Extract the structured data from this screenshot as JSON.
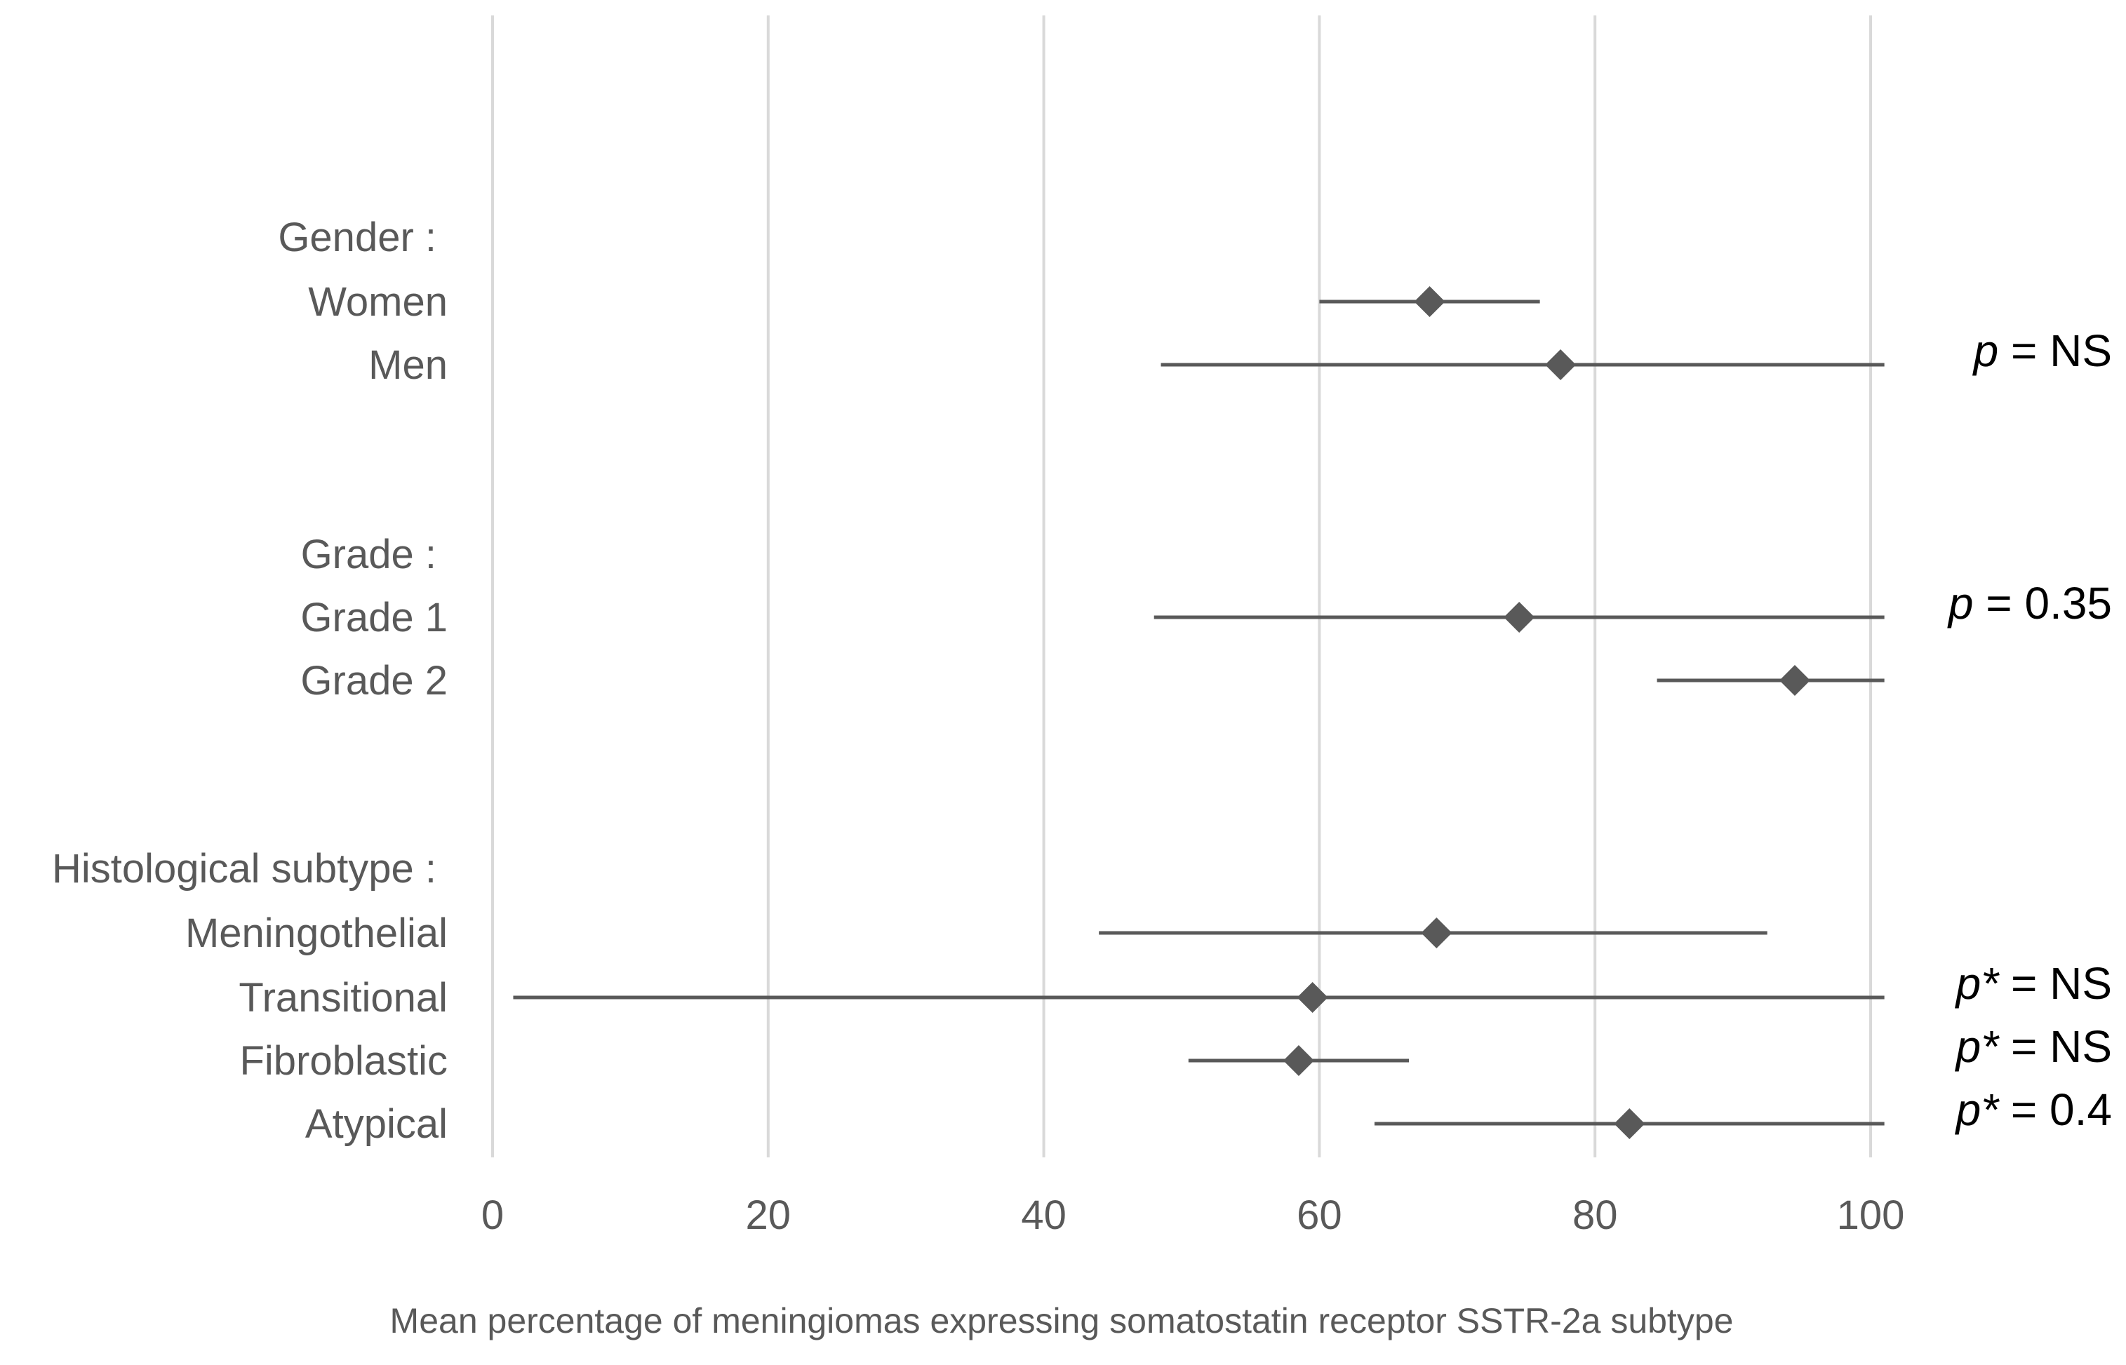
{
  "chart_data": {
    "type": "scatter",
    "subtype": "forest-plot",
    "title": "",
    "xlabel": "Mean percentage of meningiomas expressing somatostatin receptor SSTR-2a  subtype",
    "ylabel": "",
    "xlim": [
      0,
      100
    ],
    "xticks": [
      "0",
      "20",
      "40",
      "60",
      "80",
      "100"
    ],
    "xtick_values": [
      0,
      20,
      40,
      60,
      80,
      100
    ],
    "grid": "vertical",
    "rows": [
      {
        "label": "Gender :",
        "header": true
      },
      {
        "label": "Women",
        "mean": 68,
        "low": 60,
        "high": 76
      },
      {
        "label": "Men",
        "mean": 77.5,
        "low": 48.5,
        "high": 101
      },
      {
        "label": "",
        "spacer": true
      },
      {
        "label": "Grade :",
        "header": true
      },
      {
        "label": "Grade 1",
        "mean": 74.5,
        "low": 48,
        "high": 101
      },
      {
        "label": "Grade 2",
        "mean": 94.5,
        "low": 84.5,
        "high": 101
      },
      {
        "label": "",
        "spacer": true
      },
      {
        "label": "Histological subtype :",
        "header": true
      },
      {
        "label": "Meningothelial",
        "mean": 68.5,
        "low": 44,
        "high": 92.5
      },
      {
        "label": "Transitional",
        "mean": 59.5,
        "low": 1.5,
        "high": 101
      },
      {
        "label": "Fibroblastic",
        "mean": 58.5,
        "low": 50.5,
        "high": 66.5
      },
      {
        "label": "Atypical",
        "mean": 82.5,
        "low": 64,
        "high": 101
      }
    ],
    "annotations": [
      {
        "p": "p",
        "rest": " = NS",
        "row": "Men"
      },
      {
        "p": "p",
        "rest": " = 0.35",
        "row": "Grade 1"
      },
      {
        "p": "p*",
        "rest": " = NS",
        "row": "Transitional"
      },
      {
        "p": "p*",
        "rest": " = NS",
        "row": "Fibroblastic"
      },
      {
        "p": "p*",
        "rest": " = 0.4",
        "row": "Atypical"
      }
    ],
    "colors": {
      "marker": "#595959",
      "line": "#595959",
      "grid": "#d9d9d9",
      "text": "#595959",
      "annotation": "#000000"
    }
  }
}
